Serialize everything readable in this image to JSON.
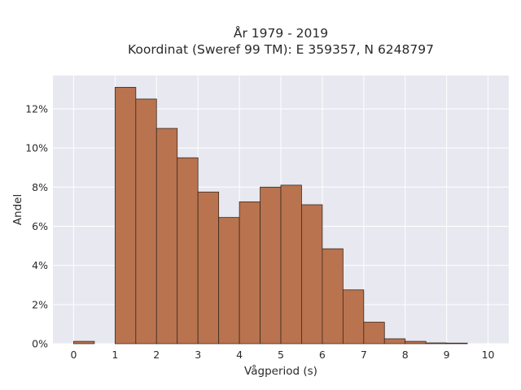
{
  "chart_data": {
    "type": "bar",
    "title_lines": [
      "År 1979 - 2019",
      "Koordinat (Sweref 99 TM): E 359357, N 6248797"
    ],
    "xlabel": "Vågperiod (s)",
    "ylabel": "Andel",
    "xlim": [
      -0.5,
      10.5
    ],
    "ylim": [
      0,
      13.7
    ],
    "x_ticks": [
      0,
      1,
      2,
      3,
      4,
      5,
      6,
      7,
      8,
      9,
      10
    ],
    "x_tick_labels": [
      "0",
      "1",
      "2",
      "3",
      "4",
      "5",
      "6",
      "7",
      "8",
      "9",
      "10"
    ],
    "y_ticks": [
      0,
      2,
      4,
      6,
      8,
      10,
      12
    ],
    "y_tick_labels": [
      "0%",
      "2%",
      "4%",
      "6%",
      "8%",
      "10%",
      "12%"
    ],
    "bin_width": 0.5,
    "bin_starts": [
      0,
      0.5,
      1,
      1.5,
      2,
      2.5,
      3,
      3.5,
      4,
      4.5,
      5,
      5.5,
      6,
      6.5,
      7,
      7.5,
      8,
      8.5,
      9,
      9.5
    ],
    "values": [
      0.12,
      0,
      13.1,
      12.5,
      11.0,
      9.5,
      7.75,
      6.45,
      7.25,
      8.0,
      8.1,
      7.1,
      4.85,
      2.75,
      1.1,
      0.25,
      0.12,
      0.04,
      0.03,
      0
    ],
    "colors": {
      "bar": "#b9734f",
      "bar_edge": "#3a2a20",
      "plot_bg": "#e8e8f0",
      "grid": "#ffffff"
    },
    "grid": true,
    "legend": "none"
  }
}
